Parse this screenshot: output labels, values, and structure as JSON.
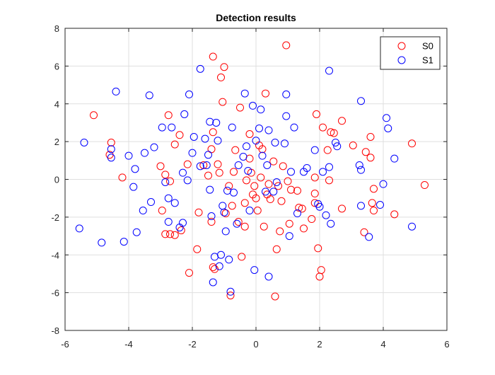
{
  "chart_data": {
    "type": "scatter",
    "title": "Detection results",
    "xlabel": "",
    "ylabel": "",
    "xlim": [
      -6,
      6
    ],
    "ylim": [
      -8,
      8
    ],
    "xticks": [
      -6,
      -4,
      -2,
      0,
      2,
      4,
      6
    ],
    "yticks": [
      -8,
      -6,
      -4,
      -2,
      0,
      2,
      4,
      6,
      8
    ],
    "grid": true,
    "legend_position": "top-right",
    "marker": "open-circle",
    "series": [
      {
        "name": "S0",
        "color": "#ff0000",
        "points": [
          [
            -5.1,
            3.4
          ],
          [
            -4.55,
            1.95
          ],
          [
            -4.6,
            1.3
          ],
          [
            -4.2,
            0.1
          ],
          [
            -3.0,
            0.7
          ],
          [
            -2.85,
            0.25
          ],
          [
            -2.7,
            -0.1
          ],
          [
            -2.95,
            -1.65
          ],
          [
            -2.85,
            -2.9
          ],
          [
            -2.7,
            -2.9
          ],
          [
            -2.55,
            -2.95
          ],
          [
            -2.35,
            -2.7
          ],
          [
            -2.75,
            3.4
          ],
          [
            -2.55,
            1.85
          ],
          [
            -2.4,
            2.35
          ],
          [
            -2.15,
            0.8
          ],
          [
            -2.1,
            -4.95
          ],
          [
            -1.85,
            -3.7
          ],
          [
            -1.8,
            -1.75
          ],
          [
            -1.65,
            0.75
          ],
          [
            -1.5,
            0.2
          ],
          [
            -1.4,
            -2.25
          ],
          [
            -1.4,
            1.6
          ],
          [
            -1.35,
            2.5
          ],
          [
            -1.35,
            6.5
          ],
          [
            -1.3,
            -4.75
          ],
          [
            -1.35,
            -4.65
          ],
          [
            -1.2,
            0.8
          ],
          [
            -1.15,
            0.35
          ],
          [
            -1.1,
            5.4
          ],
          [
            -1.05,
            4.1
          ],
          [
            -1.0,
            5.95
          ],
          [
            -0.95,
            -1.8
          ],
          [
            -0.85,
            -0.35
          ],
          [
            -0.8,
            -6.15
          ],
          [
            -0.75,
            -1.4
          ],
          [
            -0.7,
            0.4
          ],
          [
            -0.65,
            1.55
          ],
          [
            -0.55,
            -2.25
          ],
          [
            -0.5,
            3.8
          ],
          [
            -0.45,
            -4.1
          ],
          [
            -0.35,
            -1.25
          ],
          [
            -0.35,
            -2.5
          ],
          [
            -0.2,
            1.1
          ],
          [
            -0.15,
            0.35
          ],
          [
            -0.1,
            -0.8
          ],
          [
            -0.05,
            -0.35
          ],
          [
            0.0,
            -1.0
          ],
          [
            0.05,
            -1.65
          ],
          [
            0.15,
            0.1
          ],
          [
            0.2,
            1.6
          ],
          [
            0.25,
            -2.5
          ],
          [
            0.3,
            4.55
          ],
          [
            0.35,
            -0.8
          ],
          [
            0.4,
            -0.25
          ],
          [
            0.45,
            -1.05
          ],
          [
            0.55,
            0.95
          ],
          [
            0.6,
            -6.2
          ],
          [
            0.65,
            -3.7
          ],
          [
            0.7,
            -0.35
          ],
          [
            0.75,
            -2.75
          ],
          [
            0.8,
            -1.15
          ],
          [
            0.85,
            0.7
          ],
          [
            0.95,
            7.1
          ],
          [
            1.0,
            -0.1
          ],
          [
            1.05,
            -2.35
          ],
          [
            1.1,
            -0.55
          ],
          [
            1.3,
            -0.6
          ],
          [
            1.35,
            -1.5
          ],
          [
            1.45,
            -1.55
          ],
          [
            1.5,
            -2.6
          ],
          [
            1.75,
            -2.1
          ],
          [
            1.85,
            -0.75
          ],
          [
            1.85,
            -1.25
          ],
          [
            1.85,
            0.1
          ],
          [
            1.9,
            3.45
          ],
          [
            1.95,
            -3.65
          ],
          [
            2.0,
            -5.15
          ],
          [
            2.05,
            -4.8
          ],
          [
            2.1,
            2.75
          ],
          [
            2.25,
            1.55
          ],
          [
            2.3,
            -0.05
          ],
          [
            2.35,
            2.5
          ],
          [
            2.45,
            2.45
          ],
          [
            2.7,
            3.1
          ],
          [
            2.7,
            -1.55
          ],
          [
            3.05,
            1.8
          ],
          [
            3.4,
            -2.8
          ],
          [
            3.45,
            1.45
          ],
          [
            3.6,
            1.15
          ],
          [
            3.6,
            2.25
          ],
          [
            3.65,
            -1.25
          ],
          [
            3.7,
            -0.5
          ],
          [
            3.7,
            -1.65
          ],
          [
            4.35,
            -1.85
          ],
          [
            4.9,
            1.9
          ],
          [
            5.3,
            -0.3
          ],
          [
            -0.3,
            -0.05
          ],
          [
            -0.2,
            2.4
          ],
          [
            0.1,
            1.8
          ]
        ]
      },
      {
        "name": "S1",
        "color": "#0000ff",
        "points": [
          [
            -5.55,
            -2.6
          ],
          [
            -5.4,
            1.95
          ],
          [
            -4.85,
            -3.35
          ],
          [
            -4.55,
            1.6
          ],
          [
            -4.55,
            1.15
          ],
          [
            -4.4,
            4.65
          ],
          [
            -4.15,
            -3.3
          ],
          [
            -4.0,
            1.25
          ],
          [
            -3.85,
            -0.4
          ],
          [
            -3.8,
            0.55
          ],
          [
            -3.75,
            -2.8
          ],
          [
            -3.55,
            -1.65
          ],
          [
            -3.5,
            1.4
          ],
          [
            -3.35,
            4.45
          ],
          [
            -3.3,
            -1.2
          ],
          [
            -3.2,
            1.7
          ],
          [
            -2.95,
            2.75
          ],
          [
            -2.85,
            -0.15
          ],
          [
            -2.75,
            -1.0
          ],
          [
            -2.75,
            -2.25
          ],
          [
            -2.65,
            2.75
          ],
          [
            -2.55,
            -1.25
          ],
          [
            -2.4,
            -2.55
          ],
          [
            -2.3,
            0.35
          ],
          [
            -2.3,
            -2.3
          ],
          [
            -2.25,
            3.45
          ],
          [
            -2.15,
            -0.05
          ],
          [
            -2.1,
            4.5
          ],
          [
            -2.0,
            1.4
          ],
          [
            -1.95,
            2.25
          ],
          [
            -1.75,
            5.85
          ],
          [
            -1.75,
            0.7
          ],
          [
            -1.55,
            0.75
          ],
          [
            -1.5,
            1.3
          ],
          [
            -1.45,
            -0.55
          ],
          [
            -1.45,
            3.05
          ],
          [
            -1.4,
            -1.95
          ],
          [
            -1.35,
            -5.45
          ],
          [
            -1.3,
            -4.1
          ],
          [
            -1.25,
            3.0
          ],
          [
            -1.2,
            2.05
          ],
          [
            -1.15,
            -4.6
          ],
          [
            -1.1,
            -4.0
          ],
          [
            -1.05,
            -1.4
          ],
          [
            -1.0,
            -1.75
          ],
          [
            -0.95,
            -2.75
          ],
          [
            -0.9,
            -0.6
          ],
          [
            -0.85,
            -4.25
          ],
          [
            -0.8,
            -5.95
          ],
          [
            -0.75,
            2.75
          ],
          [
            -0.7,
            -0.7
          ],
          [
            -0.6,
            -2.35
          ],
          [
            -0.55,
            0.75
          ],
          [
            -0.4,
            1.2
          ],
          [
            -0.35,
            4.55
          ],
          [
            -0.3,
            1.75
          ],
          [
            -0.25,
            0.45
          ],
          [
            -0.2,
            -1.65
          ],
          [
            -0.1,
            3.9
          ],
          [
            -0.05,
            -4.8
          ],
          [
            0.0,
            2.05
          ],
          [
            0.1,
            2.7
          ],
          [
            0.15,
            3.7
          ],
          [
            0.2,
            1.25
          ],
          [
            0.3,
            -0.65
          ],
          [
            0.35,
            0.75
          ],
          [
            0.4,
            2.6
          ],
          [
            0.4,
            -5.15
          ],
          [
            0.55,
            -0.65
          ],
          [
            0.6,
            1.95
          ],
          [
            0.65,
            -0.15
          ],
          [
            0.9,
            1.9
          ],
          [
            0.95,
            3.35
          ],
          [
            0.95,
            4.5
          ],
          [
            1.05,
            -3.0
          ],
          [
            1.1,
            0.4
          ],
          [
            1.2,
            2.75
          ],
          [
            1.3,
            -1.8
          ],
          [
            1.5,
            0.4
          ],
          [
            1.6,
            0.6
          ],
          [
            1.85,
            1.55
          ],
          [
            1.95,
            -1.3
          ],
          [
            2.0,
            -1.45
          ],
          [
            2.1,
            0.4
          ],
          [
            2.2,
            -1.9
          ],
          [
            2.3,
            0.65
          ],
          [
            2.3,
            5.75
          ],
          [
            2.35,
            -2.35
          ],
          [
            2.5,
            1.95
          ],
          [
            2.55,
            1.75
          ],
          [
            3.25,
            0.75
          ],
          [
            3.3,
            0.5
          ],
          [
            3.3,
            4.15
          ],
          [
            3.3,
            -1.4
          ],
          [
            3.55,
            -3.05
          ],
          [
            3.9,
            -1.35
          ],
          [
            4.0,
            -0.25
          ],
          [
            4.1,
            3.25
          ],
          [
            4.15,
            2.7
          ],
          [
            4.35,
            1.1
          ],
          [
            4.9,
            -2.5
          ],
          [
            -1.6,
            2.15
          ]
        ]
      }
    ]
  }
}
